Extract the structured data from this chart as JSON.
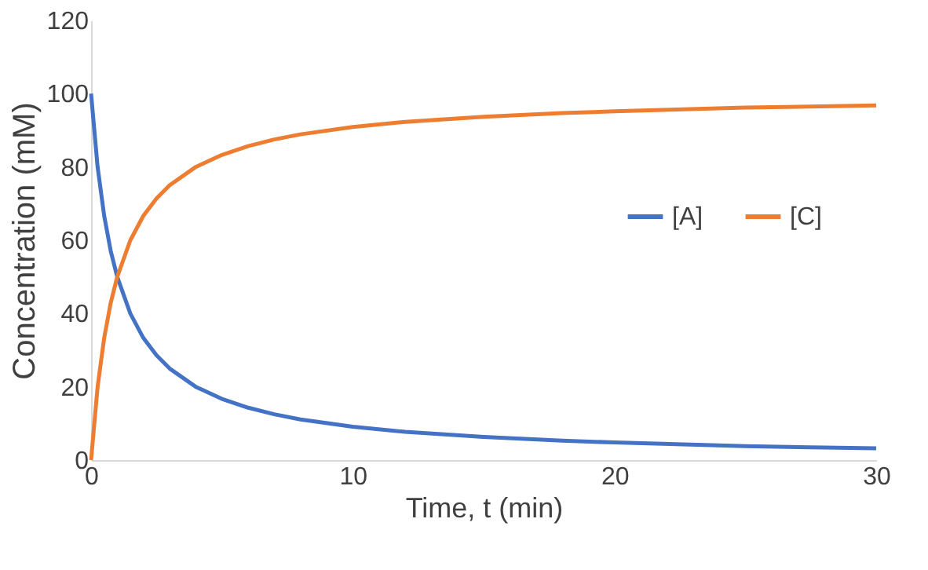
{
  "chart_data": {
    "type": "line",
    "xlabel": "Time, t (min)",
    "ylabel": "Concentration (mM)",
    "xlim": [
      0,
      30
    ],
    "xticks": [
      0,
      10,
      20,
      30
    ],
    "ylim": [
      0,
      120
    ],
    "yticks": [
      0,
      20,
      40,
      60,
      80,
      100,
      120
    ],
    "x": [
      0,
      0.25,
      0.5,
      0.75,
      1,
      1.5,
      2,
      2.5,
      3,
      4,
      5,
      6,
      7,
      8,
      10,
      12,
      15,
      18,
      20,
      25,
      30
    ],
    "series": [
      {
        "name": "[A]",
        "color": "#4472c4",
        "values": [
          100,
          80,
          66.7,
          57.1,
          50,
          40,
          33.3,
          28.6,
          25,
          20,
          16.7,
          14.3,
          12.5,
          11.1,
          9.1,
          7.7,
          6.3,
          5.3,
          4.8,
          3.8,
          3.2
        ]
      },
      {
        "name": "[C]",
        "color": "#ed7d31",
        "values": [
          0,
          20,
          33.3,
          42.9,
          50,
          60,
          66.7,
          71.4,
          75,
          80,
          83.3,
          85.7,
          87.5,
          88.9,
          90.9,
          92.3,
          93.7,
          94.7,
          95.2,
          96.2,
          96.8
        ]
      }
    ],
    "legend": "right",
    "grid": false,
    "marker": "none",
    "line_style": "solid"
  }
}
